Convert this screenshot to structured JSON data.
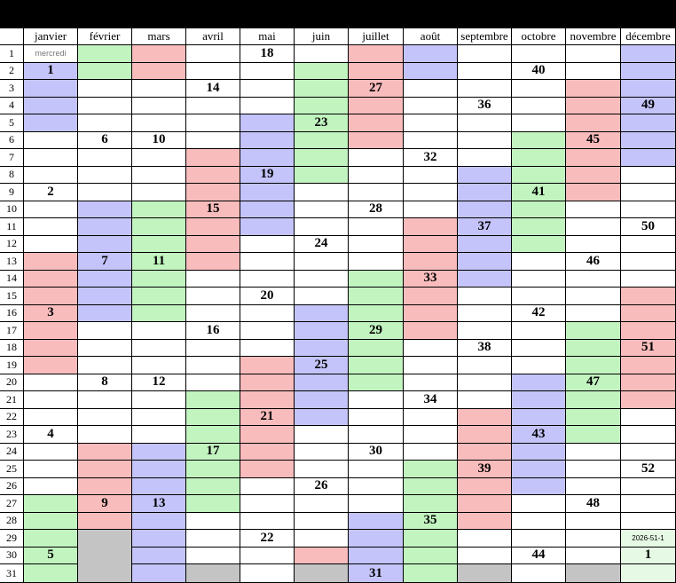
{
  "months": [
    "janvier",
    "février",
    "mars",
    "avril",
    "mai",
    "juin",
    "juillet",
    "août",
    "septembre",
    "octobre",
    "novembre",
    "décembre"
  ],
  "days_in_month": [
    31,
    28,
    31,
    30,
    31,
    30,
    31,
    31,
    30,
    31,
    30,
    31
  ],
  "colors": {
    "red": "#f9bcbc",
    "green": "#c2f4c0",
    "blue": "#c4c4fa",
    "gray": "#c4c4c4",
    "white": "#ffffff",
    "pale_green": "#e6f9e4"
  },
  "color_runs": [
    [
      [
        "blue",
        2,
        5
      ],
      [
        "red",
        13,
        19
      ],
      [
        "green",
        27,
        31
      ]
    ],
    [
      [
        "green",
        1,
        2
      ],
      [
        "blue",
        10,
        16
      ],
      [
        "red",
        24,
        28
      ]
    ],
    [
      [
        "red",
        1,
        2
      ],
      [
        "green",
        10,
        16
      ],
      [
        "blue",
        24,
        31
      ]
    ],
    [
      [
        "red",
        7,
        13
      ],
      [
        "green",
        21,
        27
      ]
    ],
    [
      [
        "blue",
        5,
        11
      ],
      [
        "red",
        19,
        25
      ]
    ],
    [
      [
        "green",
        2,
        8
      ],
      [
        "blue",
        16,
        22
      ],
      [
        "red",
        30,
        30
      ]
    ],
    [
      [
        "red",
        1,
        6
      ],
      [
        "green",
        14,
        20
      ],
      [
        "blue",
        28,
        31
      ]
    ],
    [
      [
        "blue",
        1,
        2
      ],
      [
        "red",
        11,
        17
      ],
      [
        "green",
        25,
        31
      ]
    ],
    [
      [
        "blue",
        8,
        14
      ],
      [
        "red",
        22,
        28
      ]
    ],
    [
      [
        "green",
        6,
        12
      ],
      [
        "blue",
        20,
        26
      ]
    ],
    [
      [
        "red",
        3,
        9
      ],
      [
        "green",
        17,
        23
      ]
    ],
    [
      [
        "blue",
        1,
        7
      ],
      [
        "red",
        15,
        21
      ],
      [
        "pale_green",
        29,
        31
      ]
    ]
  ],
  "week_numbers": [
    [
      [
        2,
        "1"
      ],
      [
        9,
        "2"
      ],
      [
        16,
        "3"
      ],
      [
        23,
        "4"
      ],
      [
        30,
        "5"
      ]
    ],
    [
      [
        6,
        "6"
      ],
      [
        13,
        "7"
      ],
      [
        20,
        "8"
      ],
      [
        27,
        "9"
      ]
    ],
    [
      [
        6,
        "10"
      ],
      [
        13,
        "11"
      ],
      [
        20,
        "12"
      ],
      [
        27,
        "13"
      ]
    ],
    [
      [
        3,
        "14"
      ],
      [
        10,
        "15"
      ],
      [
        17,
        "16"
      ],
      [
        24,
        "17"
      ]
    ],
    [
      [
        1,
        "18"
      ],
      [
        8,
        "19"
      ],
      [
        15,
        "20"
      ],
      [
        22,
        "21"
      ],
      [
        29,
        "22"
      ]
    ],
    [
      [
        5,
        "23"
      ],
      [
        12,
        "24"
      ],
      [
        19,
        "25"
      ],
      [
        26,
        "26"
      ]
    ],
    [
      [
        3,
        "27"
      ],
      [
        10,
        "28"
      ],
      [
        17,
        "29"
      ],
      [
        24,
        "30"
      ],
      [
        31,
        "31"
      ]
    ],
    [
      [
        7,
        "32"
      ],
      [
        14,
        "33"
      ],
      [
        21,
        "34"
      ],
      [
        28,
        "35"
      ]
    ],
    [
      [
        4,
        "36"
      ],
      [
        11,
        "37"
      ],
      [
        18,
        "38"
      ],
      [
        25,
        "39"
      ]
    ],
    [
      [
        2,
        "40"
      ],
      [
        9,
        "41"
      ],
      [
        16,
        "42"
      ],
      [
        23,
        "43"
      ],
      [
        30,
        "44"
      ]
    ],
    [
      [
        6,
        "45"
      ],
      [
        13,
        "46"
      ],
      [
        20,
        "47"
      ],
      [
        27,
        "48"
      ]
    ],
    [
      [
        4,
        "49"
      ],
      [
        11,
        "50"
      ],
      [
        18,
        "51"
      ],
      [
        25,
        "52"
      ],
      [
        30,
        "1"
      ]
    ]
  ],
  "notes": [
    {
      "month": 0,
      "day": 1,
      "text": "mercredi"
    },
    {
      "month": 11,
      "day": 29,
      "text": "2026-51-1"
    }
  ]
}
